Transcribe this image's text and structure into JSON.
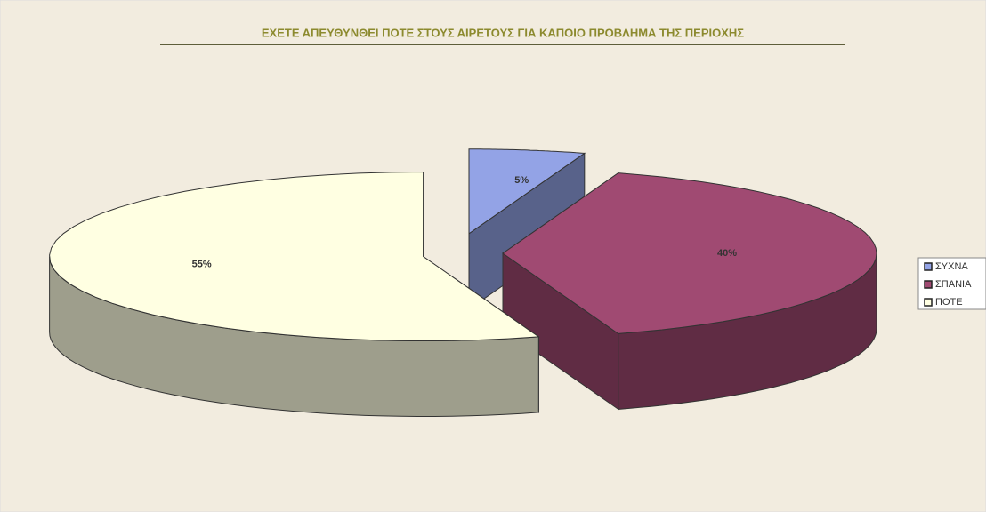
{
  "chart_data": {
    "type": "pie",
    "title": "ΕΧΕΤΕ ΑΠΕΥΘΥΝΘΕΙ ΠΟΤΕ ΣΤΟΥΣ ΑΙΡΕΤΟΥΣ ΓΙΑ ΚΑΠΟΙΟ ΠΡΟΒΛΗΜΑ ΤΗΣ ΠΕΡΙΟΧΗΣ",
    "categories": [
      "ΣΥΧΝΑ",
      "ΣΠΑΝΙΑ",
      "ΠΟΤΕ"
    ],
    "values": [
      5,
      40,
      55
    ],
    "value_labels": [
      "5%",
      "40%",
      "55%"
    ],
    "colors": [
      "#93a3e6",
      "#a04a72",
      "#ffffe2"
    ],
    "legend": "right"
  }
}
